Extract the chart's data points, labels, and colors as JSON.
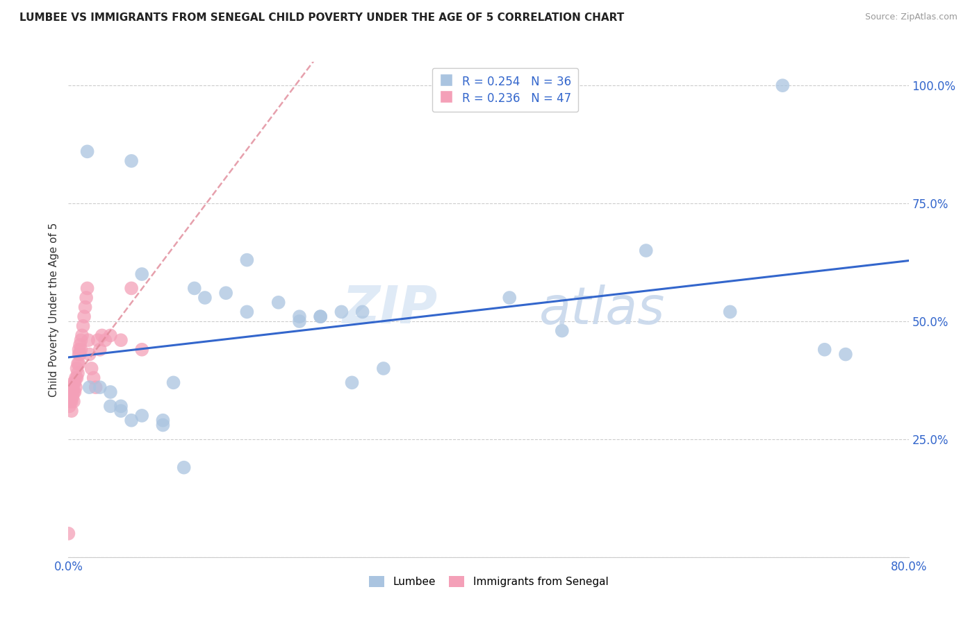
{
  "title": "LUMBEE VS IMMIGRANTS FROM SENEGAL CHILD POVERTY UNDER THE AGE OF 5 CORRELATION CHART",
  "source": "Source: ZipAtlas.com",
  "ylabel": "Child Poverty Under the Age of 5",
  "xlim": [
    0,
    0.8
  ],
  "ylim": [
    0,
    1.05
  ],
  "xticks": [
    0.0,
    0.1,
    0.2,
    0.3,
    0.4,
    0.5,
    0.6,
    0.7,
    0.8
  ],
  "xticklabels": [
    "0.0%",
    "",
    "",
    "",
    "",
    "",
    "",
    "",
    "80.0%"
  ],
  "yticks": [
    0.0,
    0.25,
    0.5,
    0.75,
    1.0
  ],
  "yticklabels": [
    "",
    "25.0%",
    "50.0%",
    "75.0%",
    "100.0%"
  ],
  "lumbee_R": 0.254,
  "lumbee_N": 36,
  "senegal_R": 0.236,
  "senegal_N": 47,
  "lumbee_color": "#aac4e0",
  "senegal_color": "#f4a0b8",
  "lumbee_line_color": "#3366cc",
  "senegal_line_color": "#e08898",
  "lumbee_x": [
    0.018,
    0.06,
    0.02,
    0.04,
    0.04,
    0.05,
    0.06,
    0.07,
    0.09,
    0.09,
    0.1,
    0.11,
    0.12,
    0.13,
    0.15,
    0.17,
    0.17,
    0.2,
    0.22,
    0.22,
    0.24,
    0.24,
    0.26,
    0.27,
    0.28,
    0.3,
    0.42,
    0.47,
    0.55,
    0.63,
    0.68,
    0.72,
    0.74,
    0.07,
    0.05,
    0.03
  ],
  "lumbee_y": [
    0.86,
    0.84,
    0.36,
    0.35,
    0.32,
    0.31,
    0.29,
    0.3,
    0.29,
    0.28,
    0.37,
    0.19,
    0.57,
    0.55,
    0.56,
    0.52,
    0.63,
    0.54,
    0.51,
    0.5,
    0.51,
    0.51,
    0.52,
    0.37,
    0.52,
    0.4,
    0.55,
    0.48,
    0.65,
    0.52,
    1.0,
    0.44,
    0.43,
    0.6,
    0.32,
    0.36
  ],
  "senegal_x": [
    0.001,
    0.001,
    0.002,
    0.002,
    0.003,
    0.003,
    0.003,
    0.004,
    0.004,
    0.005,
    0.005,
    0.005,
    0.006,
    0.006,
    0.007,
    0.007,
    0.008,
    0.008,
    0.009,
    0.009,
    0.01,
    0.01,
    0.01,
    0.011,
    0.011,
    0.012,
    0.012,
    0.013,
    0.014,
    0.015,
    0.016,
    0.017,
    0.018,
    0.019,
    0.02,
    0.022,
    0.024,
    0.026,
    0.028,
    0.03,
    0.032,
    0.035,
    0.04,
    0.05,
    0.06,
    0.07,
    0.0
  ],
  "senegal_y": [
    0.34,
    0.32,
    0.36,
    0.33,
    0.35,
    0.33,
    0.31,
    0.36,
    0.34,
    0.37,
    0.35,
    0.33,
    0.37,
    0.35,
    0.38,
    0.36,
    0.4,
    0.38,
    0.41,
    0.39,
    0.44,
    0.43,
    0.41,
    0.45,
    0.43,
    0.46,
    0.44,
    0.47,
    0.49,
    0.51,
    0.53,
    0.55,
    0.57,
    0.46,
    0.43,
    0.4,
    0.38,
    0.36,
    0.46,
    0.44,
    0.47,
    0.46,
    0.47,
    0.46,
    0.57,
    0.44,
    0.05
  ],
  "watermark_top": "ZIP",
  "watermark_bot": "atlas",
  "legend_lumbee_label": "Lumbee",
  "legend_senegal_label": "Immigrants from Senegal"
}
